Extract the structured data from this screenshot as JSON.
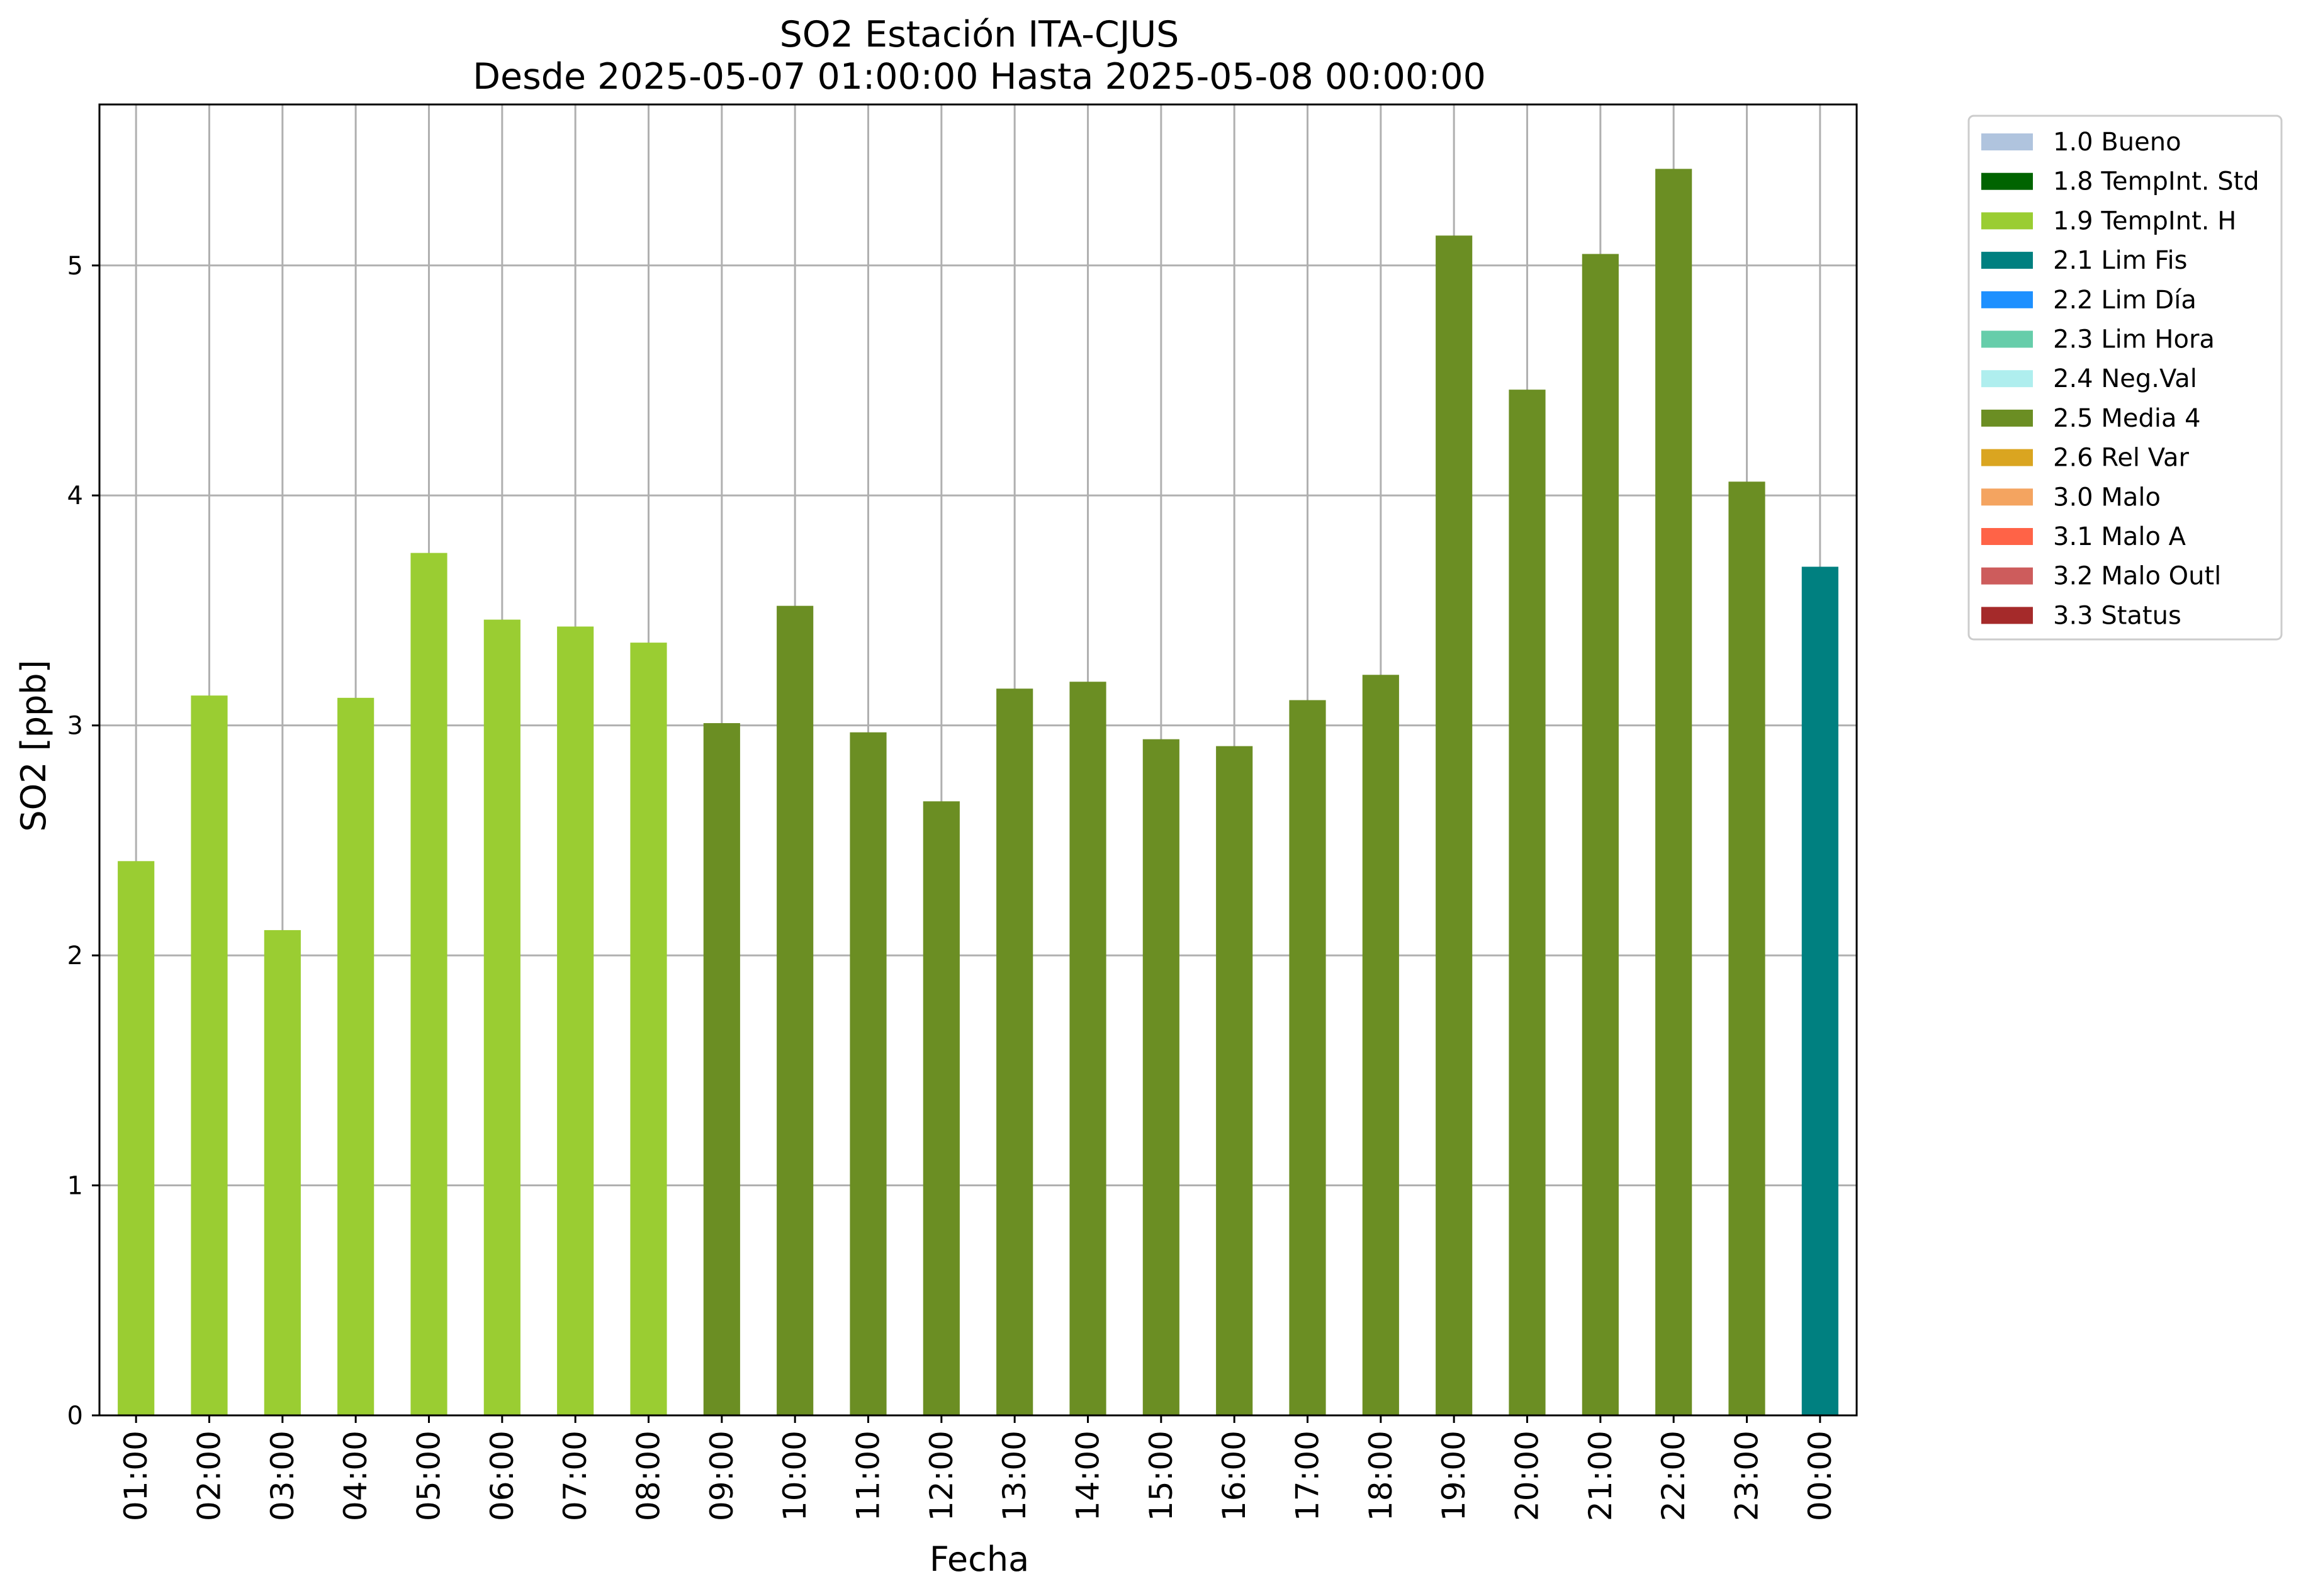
{
  "chart_data": {
    "type": "bar",
    "title": "SO2 Estación ITA-CJUS",
    "subtitle": "Desde 2025-05-07 01:00:00 Hasta 2025-05-08 00:00:00",
    "xlabel": "Fecha",
    "ylabel": "SO2 [ppb]",
    "ylim": [
      0,
      5.7
    ],
    "yticks": [
      "0",
      "1",
      "2",
      "3",
      "4",
      "5"
    ],
    "grid": true,
    "legend_position": "outside-top-right",
    "categories": [
      "01:00",
      "02:00",
      "03:00",
      "04:00",
      "05:00",
      "06:00",
      "07:00",
      "08:00",
      "09:00",
      "10:00",
      "11:00",
      "12:00",
      "13:00",
      "14:00",
      "15:00",
      "16:00",
      "17:00",
      "18:00",
      "19:00",
      "20:00",
      "21:00",
      "22:00",
      "23:00",
      "00:00"
    ],
    "values": [
      2.41,
      3.13,
      2.11,
      3.12,
      3.75,
      3.46,
      3.43,
      3.36,
      3.01,
      3.52,
      2.97,
      2.67,
      3.16,
      3.19,
      2.94,
      2.91,
      3.11,
      3.22,
      5.13,
      4.46,
      5.05,
      5.42,
      4.06,
      3.69
    ],
    "flags": [
      "1.9",
      "1.9",
      "1.9",
      "1.9",
      "1.9",
      "1.9",
      "1.9",
      "1.9",
      "2.5",
      "2.5",
      "2.5",
      "2.5",
      "2.5",
      "2.5",
      "2.5",
      "2.5",
      "2.5",
      "2.5",
      "2.5",
      "2.5",
      "2.5",
      "2.5",
      "2.5",
      "2.1"
    ],
    "legend": [
      {
        "code": "1.0",
        "label": "1.0 Bueno",
        "color": "#b0c4de"
      },
      {
        "code": "1.8",
        "label": "1.8 TempInt. Std",
        "color": "#006400"
      },
      {
        "code": "1.9",
        "label": "1.9 TempInt. H",
        "color": "#9acd32"
      },
      {
        "code": "2.1",
        "label": "2.1 Lim Fis",
        "color": "#008080"
      },
      {
        "code": "2.2",
        "label": "2.2 Lim Día",
        "color": "#1e90ff"
      },
      {
        "code": "2.3",
        "label": "2.3 Lim Hora",
        "color": "#66cdaa"
      },
      {
        "code": "2.4",
        "label": "2.4 Neg.Val",
        "color": "#afeeee"
      },
      {
        "code": "2.5",
        "label": "2.5 Media 4",
        "color": "#6b8e23"
      },
      {
        "code": "2.6",
        "label": "2.6 Rel Var",
        "color": "#daa520"
      },
      {
        "code": "3.0",
        "label": "3.0 Malo",
        "color": "#f4a460"
      },
      {
        "code": "3.1",
        "label": "3.1 Malo A",
        "color": "#ff6347"
      },
      {
        "code": "3.2",
        "label": "3.2 Malo Outl",
        "color": "#cd5c5c"
      },
      {
        "code": "3.3",
        "label": "3.3 Status",
        "color": "#a52a2a"
      }
    ]
  }
}
